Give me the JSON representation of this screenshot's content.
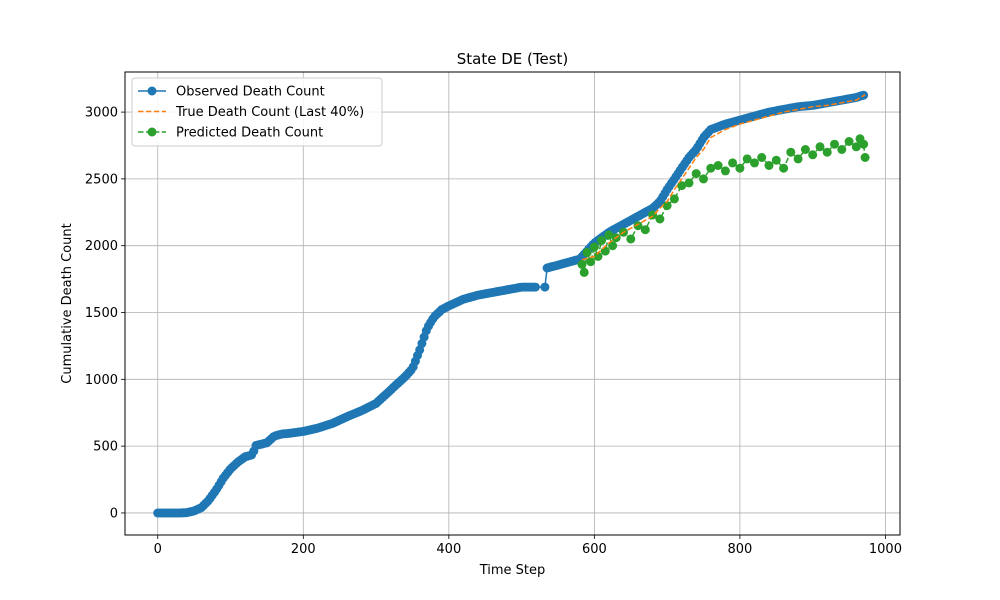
{
  "chart_data": {
    "type": "line",
    "title": "State DE (Test)",
    "xlabel": "Time Step",
    "ylabel": "Cumulative Death Count",
    "xlim": [
      -45,
      1020
    ],
    "ylim": [
      -165,
      3300
    ],
    "xticks": [
      0,
      200,
      400,
      600,
      800,
      1000
    ],
    "yticks": [
      0,
      500,
      1000,
      1500,
      2000,
      2500,
      3000
    ],
    "grid": true,
    "legend_position": "top-left",
    "series": [
      {
        "name": "Observed Death Count",
        "style": "solid-line-with-circle-markers",
        "color": "#1f77b4",
        "x": [
          0,
          15,
          30,
          40,
          50,
          60,
          70,
          80,
          90,
          100,
          110,
          120,
          130,
          135,
          150,
          160,
          170,
          180,
          200,
          220,
          240,
          260,
          280,
          300,
          320,
          340,
          350,
          360,
          370,
          380,
          390,
          400,
          420,
          440,
          460,
          480,
          500,
          520,
          532,
          533,
          560,
          580,
          600,
          620,
          640,
          660,
          680,
          690,
          700,
          710,
          720,
          730,
          740,
          750,
          760,
          780,
          800,
          820,
          840,
          860,
          880,
          900,
          920,
          940,
          960,
          972
        ],
        "y": [
          0,
          0,
          0,
          2,
          15,
          40,
          95,
          170,
          260,
          330,
          380,
          420,
          435,
          505,
          525,
          575,
          590,
          595,
          610,
          635,
          670,
          720,
          765,
          820,
          920,
          1020,
          1080,
          1220,
          1380,
          1470,
          1520,
          1550,
          1600,
          1630,
          1650,
          1670,
          1690,
          1690,
          1690,
          1830,
          1870,
          1900,
          2020,
          2100,
          2160,
          2220,
          2280,
          2330,
          2420,
          2500,
          2580,
          2660,
          2720,
          2810,
          2870,
          2910,
          2940,
          2970,
          3000,
          3020,
          3040,
          3050,
          3070,
          3090,
          3110,
          3130
        ]
      },
      {
        "name": "True Death Count (Last 40%)",
        "style": "dashed-line",
        "color": "#ff7f0e",
        "x": [
          583,
          600,
          620,
          640,
          660,
          680,
          690,
          700,
          710,
          720,
          730,
          740,
          750,
          760,
          780,
          800,
          820,
          840,
          860,
          880,
          900,
          920,
          940,
          960,
          972
        ],
        "y": [
          1895,
          1920,
          2020,
          2100,
          2160,
          2220,
          2280,
          2330,
          2420,
          2500,
          2580,
          2660,
          2720,
          2810,
          2870,
          2910,
          2940,
          2970,
          3000,
          3020,
          3040,
          3050,
          3070,
          3090,
          3130
        ]
      },
      {
        "name": "Predicted Death Count",
        "style": "dashed-line-with-circle-markers",
        "color": "#2ca02c",
        "x": [
          583,
          586,
          590,
          595,
          600,
          605,
          610,
          615,
          620,
          625,
          630,
          640,
          650,
          660,
          670,
          680,
          690,
          700,
          710,
          720,
          730,
          740,
          750,
          760,
          770,
          780,
          790,
          800,
          810,
          820,
          830,
          840,
          850,
          860,
          870,
          880,
          890,
          900,
          910,
          920,
          930,
          940,
          950,
          960,
          965,
          970,
          972
        ],
        "y": [
          1860,
          1800,
          1950,
          1880,
          1990,
          1920,
          2040,
          1960,
          2080,
          2000,
          2060,
          2100,
          2050,
          2150,
          2120,
          2230,
          2200,
          2300,
          2350,
          2450,
          2470,
          2540,
          2500,
          2580,
          2600,
          2560,
          2620,
          2580,
          2650,
          2620,
          2660,
          2600,
          2640,
          2580,
          2700,
          2650,
          2720,
          2680,
          2740,
          2700,
          2760,
          2720,
          2780,
          2740,
          2800,
          2760,
          2660
        ]
      }
    ]
  }
}
